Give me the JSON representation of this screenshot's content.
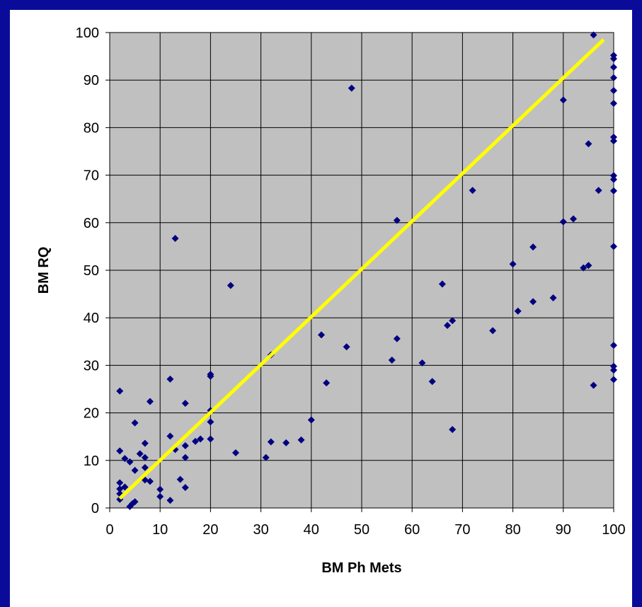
{
  "colors": {
    "frame": "#0b0b9a",
    "plot_bg": "#c0c0c0",
    "grid": "#000000",
    "marker": "#000080",
    "trend_line": "#ffff00"
  },
  "chart_data": {
    "type": "scatter",
    "title": "",
    "xlabel": "BM Ph Mets",
    "ylabel": "BM RQ",
    "xlim": [
      0,
      100
    ],
    "ylim": [
      0,
      100
    ],
    "x_ticks": [
      0,
      10,
      20,
      30,
      40,
      50,
      60,
      70,
      80,
      90,
      100
    ],
    "y_ticks": [
      0,
      10,
      20,
      30,
      40,
      50,
      60,
      70,
      80,
      90,
      100
    ],
    "grid": true,
    "legend": "none",
    "marker": "diamond",
    "points": [
      [
        2,
        24.6
      ],
      [
        2,
        12
      ],
      [
        2,
        5.3
      ],
      [
        2,
        4
      ],
      [
        2,
        3
      ],
      [
        2,
        1.8
      ],
      [
        3,
        10.4
      ],
      [
        3,
        4.4
      ],
      [
        4,
        9.7
      ],
      [
        4,
        0.3
      ],
      [
        4.5,
        0.9
      ],
      [
        5,
        17.9
      ],
      [
        5,
        7.9
      ],
      [
        5,
        1.3
      ],
      [
        6,
        11.4
      ],
      [
        7,
        13.6
      ],
      [
        7,
        10.6
      ],
      [
        7,
        8.5
      ],
      [
        7,
        5.9
      ],
      [
        8,
        22.4
      ],
      [
        8,
        5.6
      ],
      [
        10,
        3.9
      ],
      [
        10,
        2.4
      ],
      [
        12,
        27.1
      ],
      [
        12,
        15.1
      ],
      [
        12,
        1.6
      ],
      [
        13,
        56.7
      ],
      [
        13,
        12.3
      ],
      [
        14,
        6
      ],
      [
        15,
        22
      ],
      [
        15,
        13.1
      ],
      [
        15,
        10.6
      ],
      [
        15,
        4.3
      ],
      [
        17,
        14
      ],
      [
        18,
        14.5
      ],
      [
        20,
        28.1
      ],
      [
        20,
        27.7
      ],
      [
        20,
        20.5
      ],
      [
        20,
        18.1
      ],
      [
        20,
        14.5
      ],
      [
        24,
        46.8
      ],
      [
        25,
        11.6
      ],
      [
        31,
        10.6
      ],
      [
        32,
        32.2
      ],
      [
        32,
        13.9
      ],
      [
        35,
        13.7
      ],
      [
        38,
        14.3
      ],
      [
        40,
        18.5
      ],
      [
        42,
        36.4
      ],
      [
        43,
        26.3
      ],
      [
        47,
        33.9
      ],
      [
        48,
        88.3
      ],
      [
        56,
        31.1
      ],
      [
        57,
        60.5
      ],
      [
        57,
        35.6
      ],
      [
        62,
        30.5
      ],
      [
        64,
        26.6
      ],
      [
        66,
        47.1
      ],
      [
        67,
        38.4
      ],
      [
        68,
        39.4
      ],
      [
        68,
        16.5
      ],
      [
        72,
        66.8
      ],
      [
        76,
        37.3
      ],
      [
        80,
        51.3
      ],
      [
        81,
        41.4
      ],
      [
        84,
        54.9
      ],
      [
        84,
        43.4
      ],
      [
        88,
        44.2
      ],
      [
        90,
        85.8
      ],
      [
        90,
        60.2
      ],
      [
        92,
        60.8
      ],
      [
        94,
        50.5
      ],
      [
        95,
        76.6
      ],
      [
        95,
        51
      ],
      [
        96,
        99.5
      ],
      [
        96,
        25.8
      ],
      [
        97,
        66.8
      ],
      [
        100,
        95.2
      ],
      [
        100,
        94.5
      ],
      [
        100,
        92.7
      ],
      [
        100,
        90.5
      ],
      [
        100,
        87.8
      ],
      [
        100,
        85.1
      ],
      [
        100,
        78
      ],
      [
        100,
        77.2
      ],
      [
        100,
        69.9
      ],
      [
        100,
        69.1
      ],
      [
        100,
        66.7
      ],
      [
        100,
        55
      ],
      [
        100,
        34.2
      ],
      [
        100,
        29.8
      ],
      [
        100,
        29
      ],
      [
        100,
        27
      ]
    ],
    "trend_line": {
      "x": [
        2,
        98
      ],
      "y": [
        2,
        98.5
      ]
    }
  }
}
